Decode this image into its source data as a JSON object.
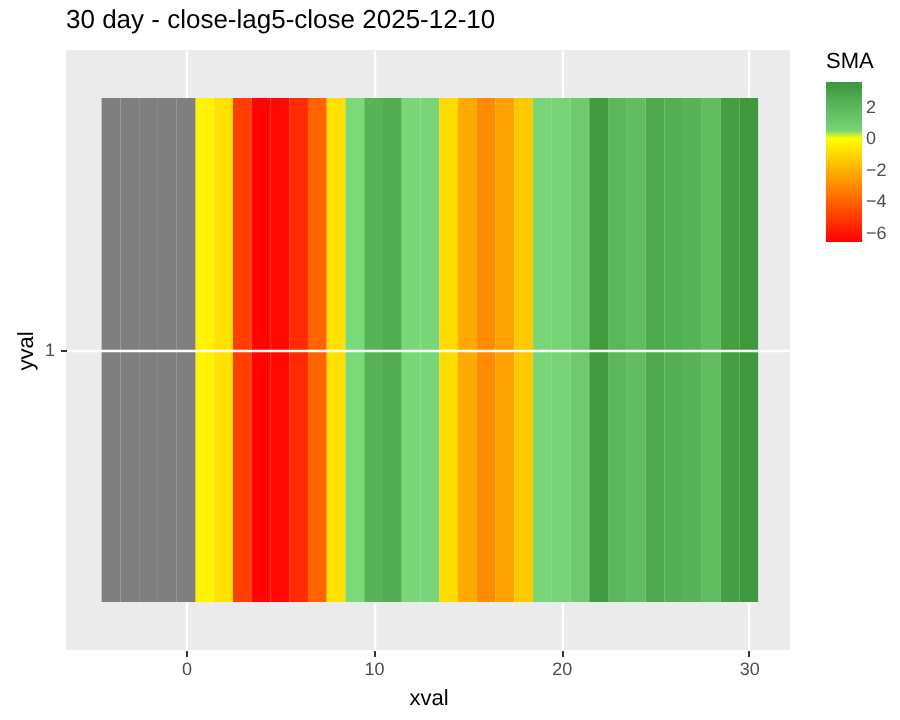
{
  "chart_data": {
    "type": "heatmap",
    "title": "30 day - close-lag5-close  2025-12-10",
    "xlabel": "xval",
    "ylabel": "yval",
    "clabel": "SMA",
    "x": [
      -4,
      -3,
      -2,
      -1,
      0,
      1,
      2,
      3,
      4,
      5,
      6,
      7,
      8,
      9,
      10,
      11,
      12,
      13,
      14,
      15,
      16,
      17,
      18,
      19,
      20,
      21,
      22,
      23,
      24,
      25,
      26,
      27,
      28,
      29,
      30
    ],
    "y_categories": [
      "1"
    ],
    "cells": [
      [
        null,
        null,
        null,
        null,
        null,
        -0.3,
        -0.8,
        -5,
        -6.5,
        -6.4,
        -5.5,
        -4,
        -0.8,
        0.3,
        2.2,
        2.5,
        0.4,
        0.5,
        -0.9,
        -2.2,
        -3,
        -2.4,
        -1.4,
        0.5,
        0.6,
        1,
        3.4,
        2,
        1.7,
        2.7,
        2.4,
        2.2,
        1.7,
        3.2,
        3.5
      ]
    ],
    "xlim": [
      -6.4,
      32.2
    ],
    "xticks": [
      0,
      10,
      20,
      30
    ],
    "clim": [
      -6.6,
      3.6
    ],
    "cticks": [
      -6,
      -4,
      -2,
      0,
      2
    ],
    "grid": true
  }
}
